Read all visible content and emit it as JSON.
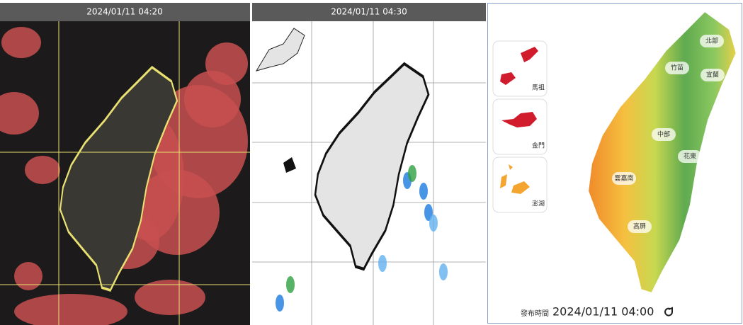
{
  "satellite": {
    "timestamp": "2024/01/11 04:20"
  },
  "radar": {
    "timestamp": "2024/01/11 04:30"
  },
  "forecast_map": {
    "islands": [
      {
        "label": "馬祖"
      },
      {
        "label": "金門"
      },
      {
        "label": "澎湖"
      }
    ],
    "regions": [
      {
        "label": "北部"
      },
      {
        "label": "竹苗"
      },
      {
        "label": "宜蘭"
      },
      {
        "label": "中部"
      },
      {
        "label": "花東"
      },
      {
        "label": "雲嘉南"
      },
      {
        "label": "高屏"
      }
    ],
    "issued_label": "發布時間",
    "issued_time": "2024/01/11 04:00"
  }
}
